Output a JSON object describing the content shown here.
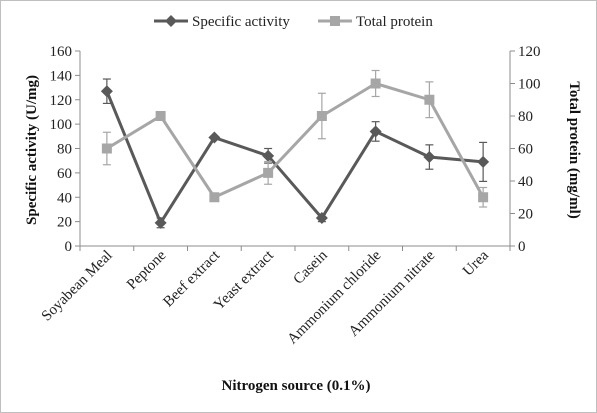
{
  "chart_data": {
    "type": "line",
    "categories": [
      "Soyabean Meal",
      "Peptone",
      "Beef extract",
      "Yeast extract",
      "Casein",
      "Ammonium chloride",
      "Ammonium nitrate",
      "Urea"
    ],
    "series": [
      {
        "name": "Specific activity",
        "axis": "left",
        "color": "#595959",
        "marker": "diamond",
        "values": [
          127,
          19,
          89,
          74,
          23,
          94,
          73,
          69
        ],
        "errors": [
          10,
          4,
          0,
          6,
          3,
          8,
          10,
          16
        ]
      },
      {
        "name": "Total protein",
        "axis": "right",
        "color": "#a6a6a6",
        "marker": "square",
        "values": [
          60,
          80,
          30,
          45,
          80,
          100,
          90,
          30
        ],
        "errors": [
          10,
          2,
          0,
          7,
          14,
          8,
          11,
          6
        ]
      }
    ],
    "xlabel": "Nitrogen source (0.1%)",
    "ylabel": "Specific activity (U/mg)",
    "ylabel_right": "Total protein (mg/ml)",
    "ylim": [
      0,
      160
    ],
    "ylim_right": [
      0,
      120
    ],
    "yticks": [
      0,
      20,
      40,
      60,
      80,
      100,
      120,
      140,
      160
    ],
    "yticks_right": [
      0,
      20,
      40,
      60,
      80,
      100,
      120
    ],
    "grid": false,
    "legend_position": "top"
  }
}
